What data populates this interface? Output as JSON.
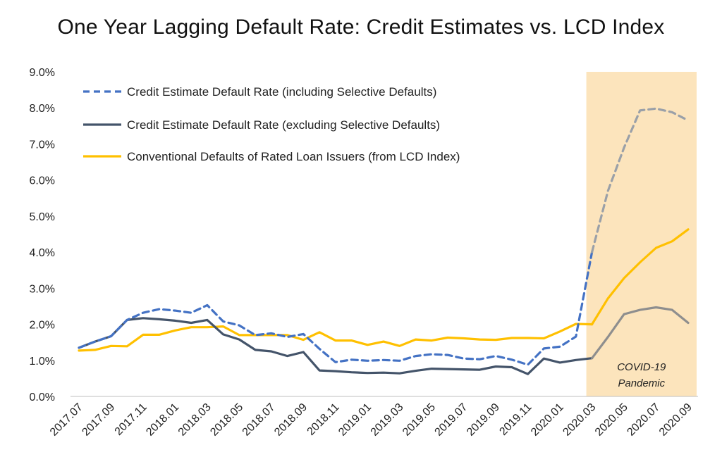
{
  "chart_data": {
    "type": "line",
    "title": "One Year Lagging Default Rate: Credit Estimates vs. LCD Index",
    "xlabel": "",
    "ylabel": "",
    "ylim": [
      0,
      9
    ],
    "y_ticks": [
      "0.0%",
      "1.0%",
      "2.0%",
      "3.0%",
      "4.0%",
      "5.0%",
      "6.0%",
      "7.0%",
      "8.0%",
      "9.0%"
    ],
    "x": [
      "2017.07",
      "2017.08",
      "2017.09",
      "2017.10",
      "2017.11",
      "2017.12",
      "2018.01",
      "2018.02",
      "2018.03",
      "2018.04",
      "2018.05",
      "2018.06",
      "2018.07",
      "2018.08",
      "2018.09",
      "2018.10",
      "2018.11",
      "2018.12",
      "2019.01",
      "2019.02",
      "2019.03",
      "2019.04",
      "2019.05",
      "2019.06",
      "2019.07",
      "2019.08",
      "2019.09",
      "2019.10",
      "2019.11",
      "2019.12",
      "2020.01",
      "2020.02",
      "2020.03",
      "2020.04",
      "2020.05",
      "2020.06",
      "2020.07",
      "2020.08",
      "2020.09"
    ],
    "x_tick_labels": [
      "2017.07",
      "2017.09",
      "2017.11",
      "2018.01",
      "2018.03",
      "2018.05",
      "2018.07",
      "2018.09",
      "2018.11",
      "2019.01",
      "2019.03",
      "2019.05",
      "2019.07",
      "2019.09",
      "2019.11",
      "2020.01",
      "2020.03",
      "2020.05",
      "2020.07",
      "2020.09"
    ],
    "grid": false,
    "legend_position": "top-left",
    "series": [
      {
        "name": "Credit Estimate Default Rate (including Selective Defaults)",
        "color": "#4472C4",
        "shaded_color": "#9AA0A8",
        "style": "dashed",
        "values": [
          1.35,
          1.52,
          1.67,
          2.12,
          2.32,
          2.42,
          2.38,
          2.32,
          2.53,
          2.08,
          1.97,
          1.7,
          1.75,
          1.65,
          1.73,
          1.32,
          0.95,
          1.02,
          0.99,
          1.01,
          0.99,
          1.12,
          1.17,
          1.15,
          1.05,
          1.03,
          1.12,
          1.02,
          0.88,
          1.33,
          1.38,
          1.66,
          4.0,
          5.7,
          6.9,
          7.93,
          7.98,
          7.88,
          7.65
        ]
      },
      {
        "name": "Credit Estimate Default Rate (excluding Selective Defaults)",
        "color": "#44546A",
        "shaded_color": "#8E8E8E",
        "style": "solid",
        "values": [
          1.35,
          1.52,
          1.67,
          2.12,
          2.17,
          2.14,
          2.1,
          2.04,
          2.12,
          1.72,
          1.58,
          1.29,
          1.25,
          1.12,
          1.23,
          0.72,
          0.7,
          0.67,
          0.65,
          0.66,
          0.64,
          0.71,
          0.77,
          0.76,
          0.75,
          0.74,
          0.83,
          0.81,
          0.62,
          1.05,
          0.94,
          1.01,
          1.06,
          1.65,
          2.28,
          2.4,
          2.47,
          2.4,
          2.04
        ]
      },
      {
        "name": "Conventional Defaults of Rated Loan Issuers (from LCD Index)",
        "color": "#FFC000",
        "shaded_color": "#FFC000",
        "style": "solid",
        "values": [
          1.27,
          1.29,
          1.4,
          1.39,
          1.71,
          1.71,
          1.83,
          1.92,
          1.92,
          1.94,
          1.7,
          1.7,
          1.7,
          1.7,
          1.57,
          1.78,
          1.55,
          1.55,
          1.43,
          1.52,
          1.4,
          1.58,
          1.55,
          1.63,
          1.61,
          1.58,
          1.57,
          1.62,
          1.62,
          1.61,
          1.8,
          2.01,
          2.0,
          2.72,
          3.28,
          3.72,
          4.12,
          4.3,
          4.63
        ]
      }
    ],
    "highlight_region": {
      "x_start": "2020.03",
      "x_end": "2020.09",
      "color": "#FCE4BC",
      "label_line1": "COVID-19",
      "label_line2": "Pandemic"
    }
  }
}
